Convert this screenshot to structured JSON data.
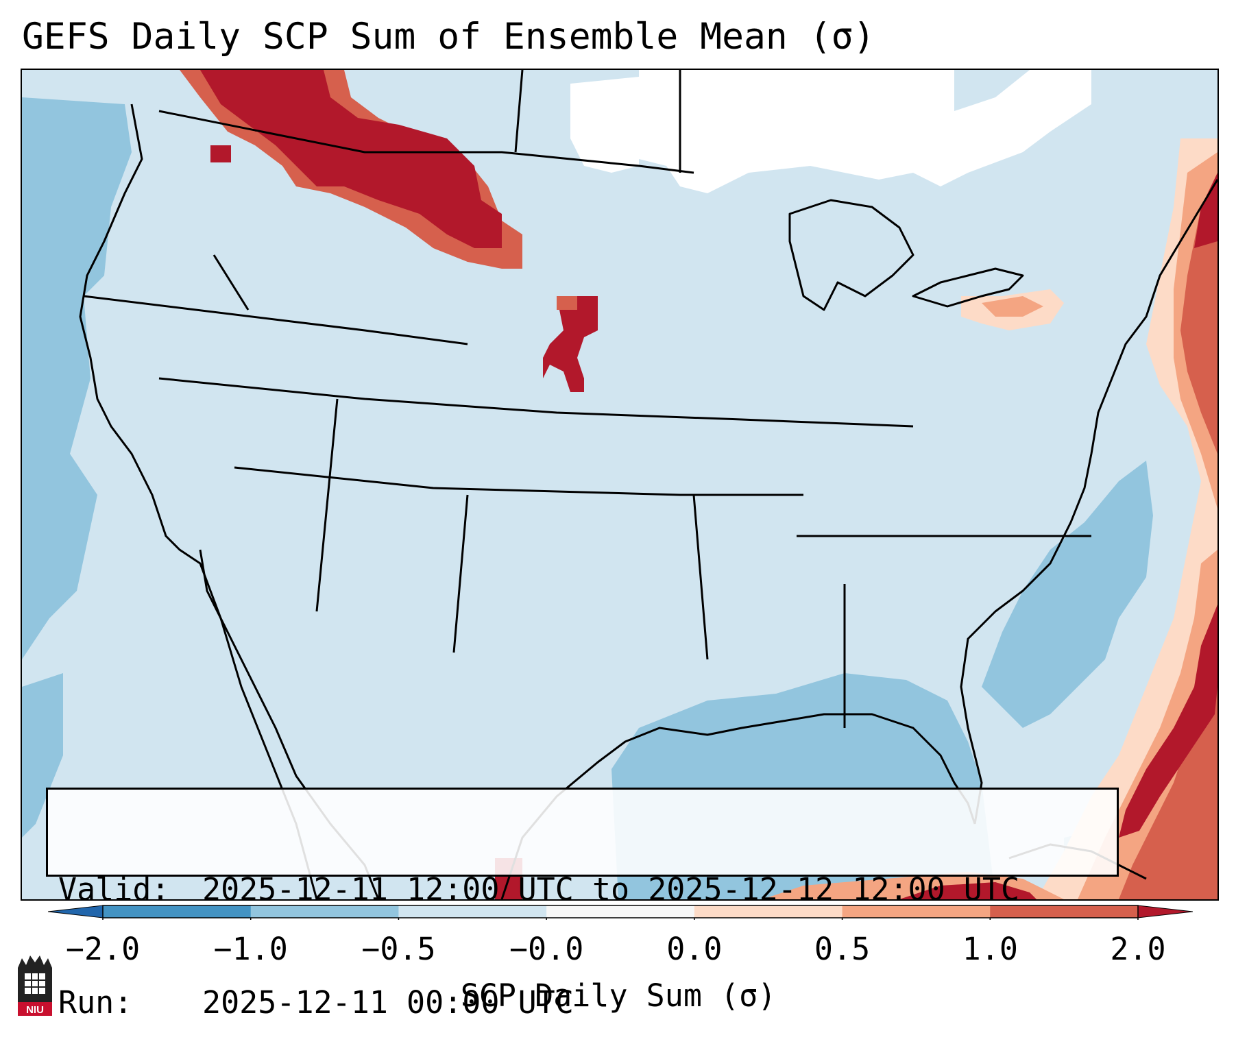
{
  "title": "GEFS Daily SCP Sum of Ensemble Mean (σ)",
  "map": {
    "region": "Continental United States",
    "variable": "Supercell Composite Parameter daily sum anomaly",
    "highlights": [
      {
        "area": "Alberta / Saskatchewan / northern Montana",
        "level": "≥ 2.0"
      },
      {
        "area": "Southern South Dakota / northern Nebraska",
        "level": "≥ 2.0"
      },
      {
        "area": "Western Atlantic off Mid-Atlantic coast",
        "level": "0.5 to ≥ 2.0"
      },
      {
        "area": "Western Atlantic near the Bahamas",
        "level": "≥ 2.0"
      },
      {
        "area": "Gulf of Mexico",
        "level": "-1.0 to -0.5"
      }
    ]
  },
  "info": {
    "valid_label": "Valid:",
    "valid_value": "2025-12-11 12:00 UTC to 2025-12-12 12:00 UTC",
    "run_label": "Run:",
    "run_value": "2025-12-11 00:00 UTC"
  },
  "colorbar": {
    "label": "SCP Daily Sum (σ)",
    "ticks": [
      "−2.0",
      "−1.0",
      "−0.5",
      "−0.0",
      "0.0",
      "0.5",
      "1.0",
      "2.0"
    ],
    "colors": {
      "under": "#2166ac",
      "bins": [
        "#4393c3",
        "#92c5de",
        "#d1e5f0",
        "#f7f7f7",
        "#fddbc7",
        "#f4a582",
        "#d6604d"
      ],
      "over": "#b2182b"
    }
  },
  "logo": {
    "text": "NIU"
  }
}
